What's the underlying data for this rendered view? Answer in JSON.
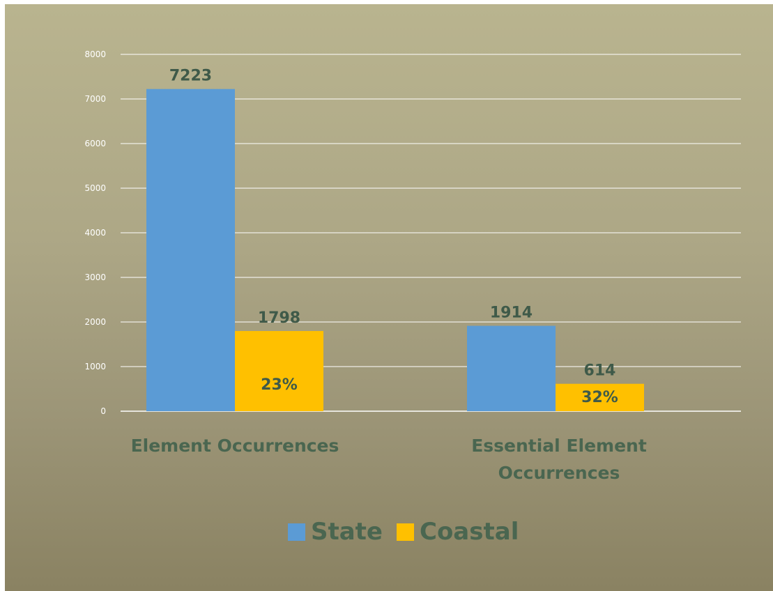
{
  "chart_data": {
    "type": "bar",
    "categories": [
      [
        "Element Occurrences"
      ],
      [
        "Essential Element",
        "Occurrences"
      ]
    ],
    "series": [
      {
        "name": "State",
        "values": [
          7223,
          1914
        ],
        "color": "#5b9bd5",
        "inner_labels": [
          "",
          ""
        ]
      },
      {
        "name": "Coastal",
        "values": [
          1798,
          614
        ],
        "color": "#ffc000",
        "inner_labels": [
          "23%",
          "32%"
        ]
      }
    ],
    "data_labels": [
      [
        "7223",
        "1914"
      ],
      [
        "1798",
        "614"
      ]
    ],
    "ylim": [
      0,
      8000
    ],
    "yticks": [
      0,
      1000,
      2000,
      3000,
      4000,
      5000,
      6000,
      7000,
      8000
    ],
    "grid": true,
    "legend_position": "bottom",
    "colors": {
      "gridline": "#ffffff",
      "text": "#3f5a49"
    }
  }
}
